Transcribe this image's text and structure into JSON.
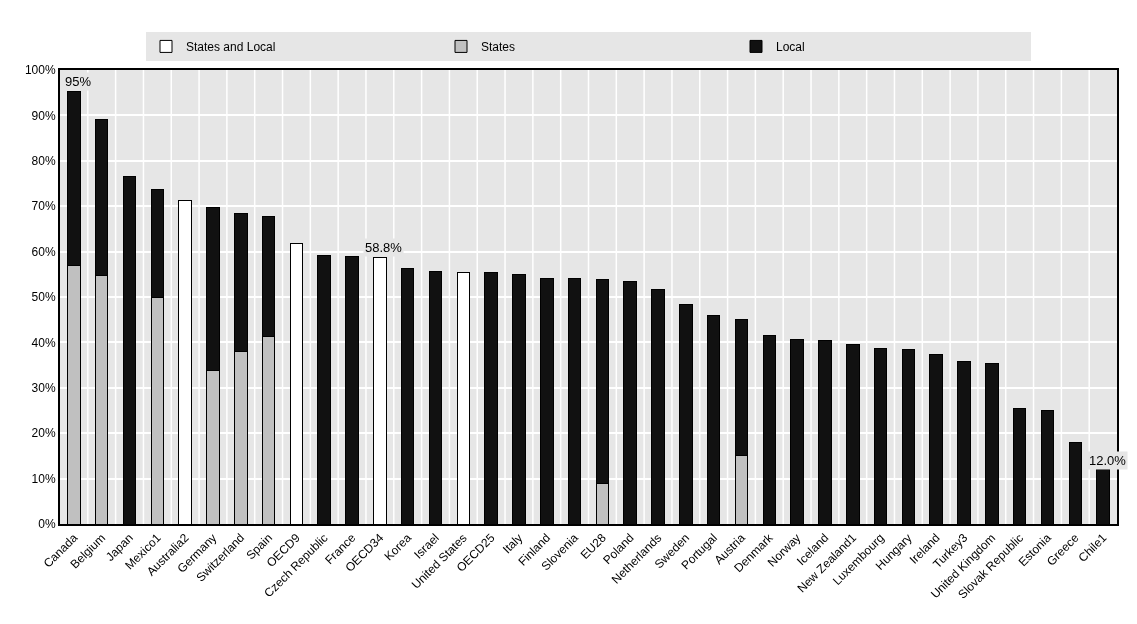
{
  "chart_data": {
    "type": "bar",
    "stacked": true,
    "categories": [
      "Canada",
      "Belgium",
      "Japan",
      "Mexico1",
      "Australia2",
      "Germany",
      "Switzerland",
      "Spain",
      "OECD9",
      "Czech Republic",
      "France",
      "OECD34",
      "Korea",
      "Israel",
      "United States",
      "OECD25",
      "Italy",
      "Finland",
      "Slovenia",
      "EU28",
      "Poland",
      "Netherlands",
      "Sweden",
      "Portugal",
      "Austria",
      "Denmark",
      "Norway",
      "Iceland",
      "New Zealand1",
      "Luxembourg",
      "Hungary",
      "Ireland",
      "Turkey3",
      "United Kingdom",
      "Slovak Republic",
      "Estonia",
      "Greece",
      "Chile1"
    ],
    "series": [
      {
        "name": "States and Local",
        "color": "#ffffff",
        "values": [
          null,
          null,
          null,
          null,
          71.2,
          null,
          null,
          null,
          61.8,
          null,
          null,
          58.8,
          null,
          null,
          55.3,
          null,
          null,
          null,
          null,
          null,
          null,
          null,
          null,
          null,
          null,
          null,
          null,
          null,
          null,
          null,
          null,
          null,
          null,
          null,
          null,
          null,
          null,
          null
        ]
      },
      {
        "name": "States",
        "color": "#c0c0c0",
        "values": [
          57,
          54.8,
          null,
          50,
          null,
          33.9,
          38,
          41.2,
          null,
          null,
          null,
          null,
          null,
          null,
          null,
          null,
          null,
          null,
          null,
          9,
          null,
          null,
          null,
          null,
          15,
          null,
          null,
          null,
          null,
          null,
          null,
          null,
          null,
          null,
          null,
          null,
          null,
          null
        ]
      },
      {
        "name": "Local",
        "color": "#111111",
        "values": [
          38.3,
          34.4,
          76.5,
          23.7,
          null,
          35.9,
          30.3,
          26.6,
          null,
          59.1,
          58.9,
          null,
          56.2,
          55.6,
          null,
          55.3,
          54.9,
          54.1,
          54.0,
          44.8,
          53.4,
          51.6,
          48.4,
          45.9,
          30.0,
          41.6,
          40.6,
          40.5,
          39.6,
          38.6,
          38.4,
          37.3,
          35.9,
          35.3,
          25.5,
          25.0,
          17.9,
          12.0
        ]
      }
    ],
    "totals": [
      "95%",
      null,
      null,
      null,
      null,
      null,
      null,
      null,
      null,
      null,
      null,
      "58.8%",
      null,
      null,
      null,
      null,
      null,
      null,
      null,
      null,
      null,
      null,
      null,
      null,
      null,
      null,
      null,
      null,
      null,
      null,
      null,
      null,
      null,
      null,
      null,
      null,
      null,
      "12.0%"
    ],
    "ylim": [
      0,
      100
    ],
    "yticks": [
      {
        "value": 0,
        "label": "0%"
      },
      {
        "value": 10,
        "label": "10%"
      },
      {
        "value": 20,
        "label": "20%"
      },
      {
        "value": 30,
        "label": "30%"
      },
      {
        "value": 40,
        "label": "40%"
      },
      {
        "value": 50,
        "label": "50%"
      },
      {
        "value": 60,
        "label": "60%"
      },
      {
        "value": 70,
        "label": "70%"
      },
      {
        "value": 80,
        "label": "80%"
      },
      {
        "value": 90,
        "label": "90%"
      },
      {
        "value": 100,
        "label": "100%"
      }
    ],
    "grid": true,
    "legend": "top"
  }
}
